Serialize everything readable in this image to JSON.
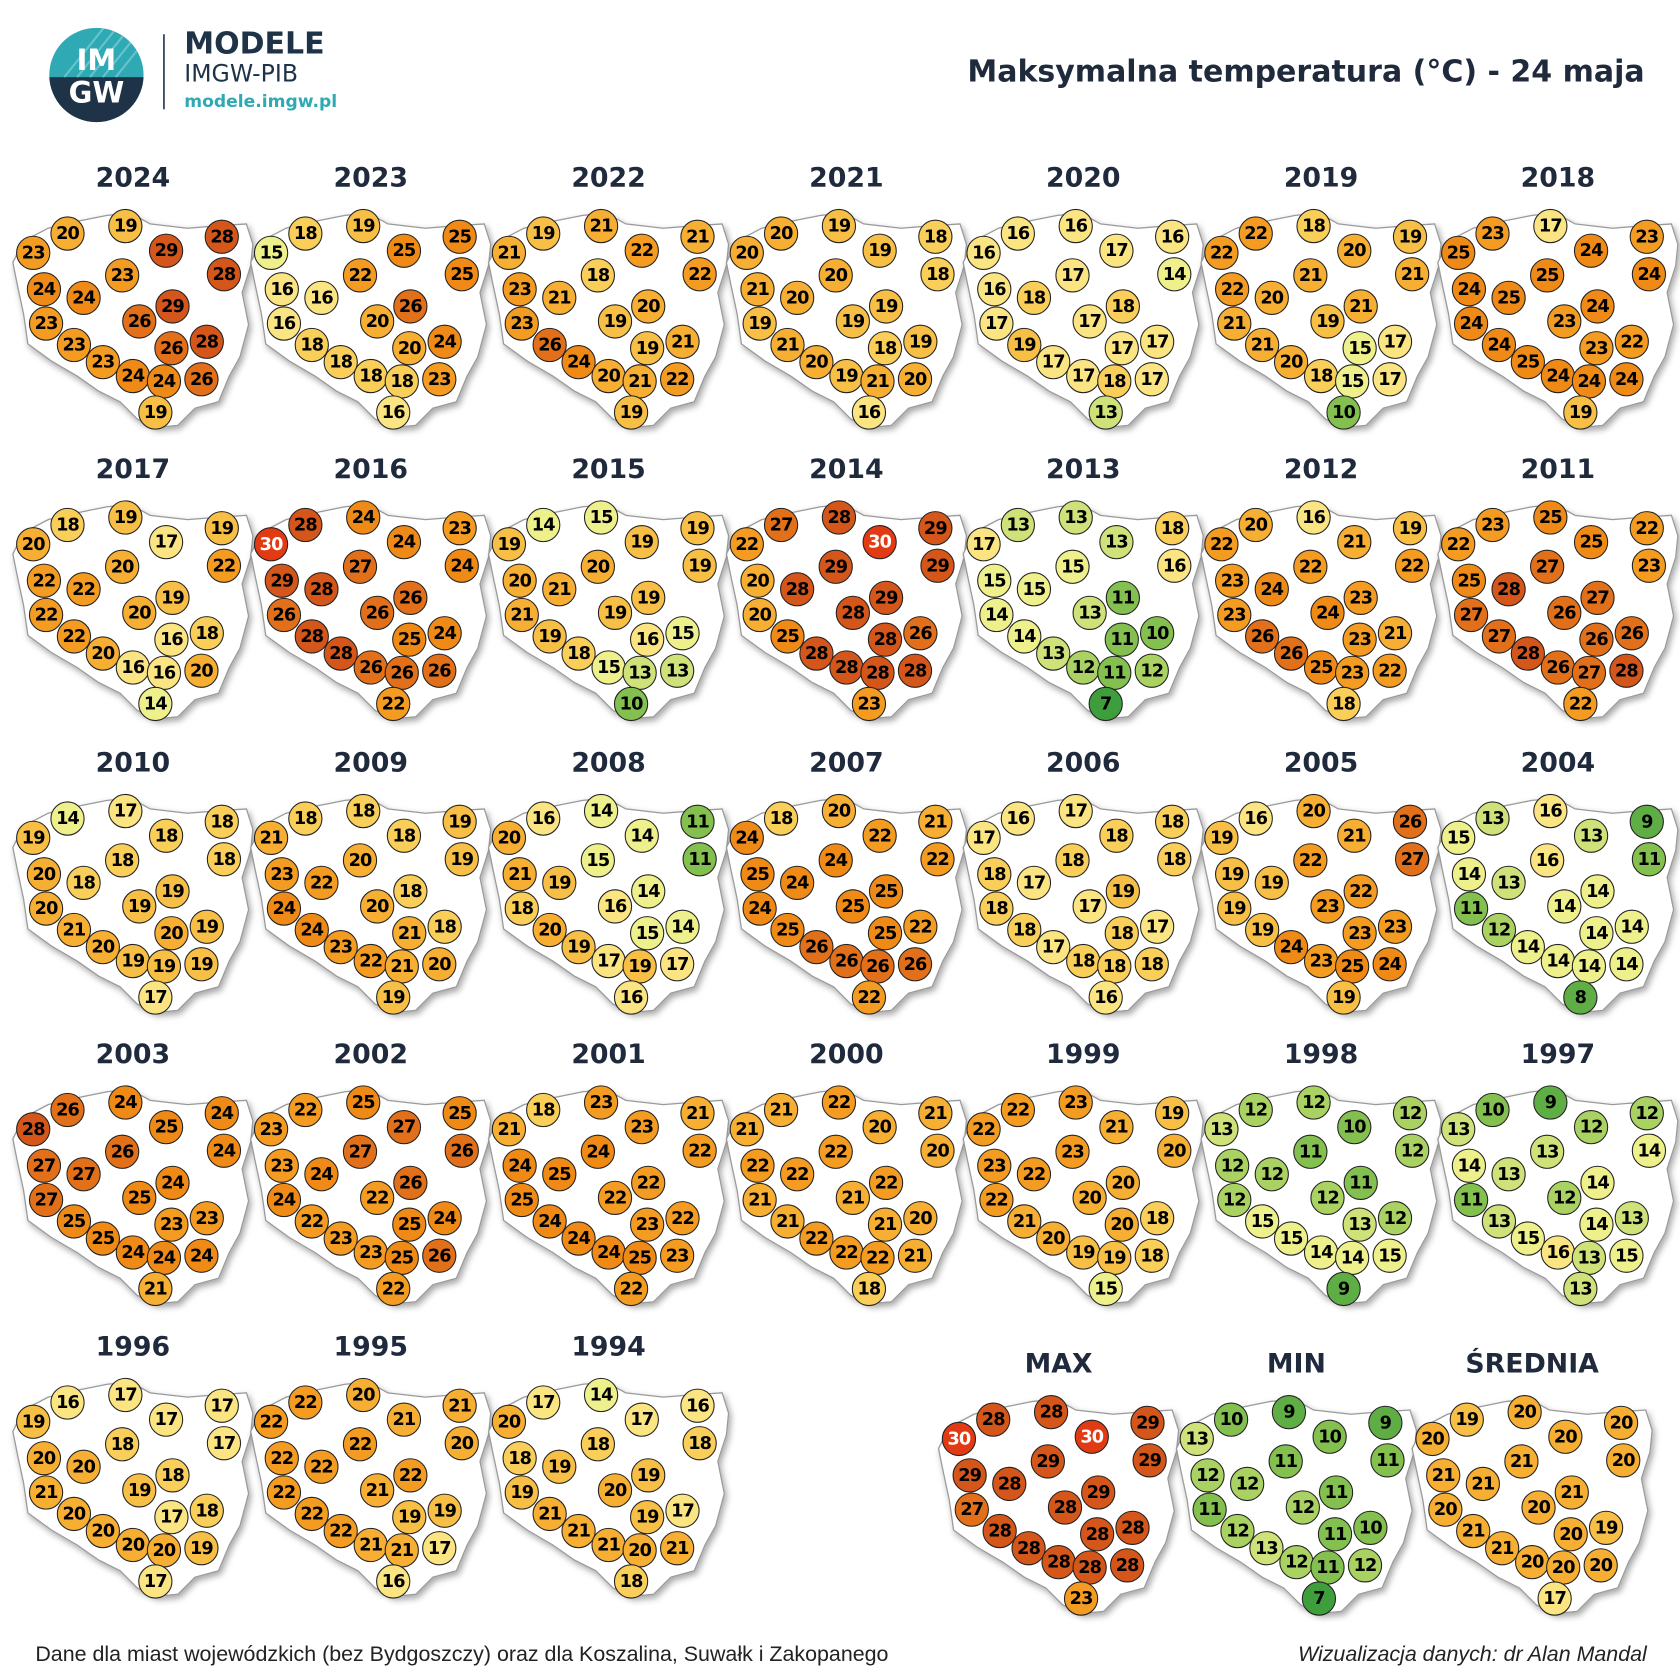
{
  "header": {
    "logo_top": "IM",
    "logo_bottom": "GW",
    "brand": "MODELE",
    "org": "IMGW-PIB",
    "url": "modele.imgw.pl"
  },
  "title": "Maksymalna temperatura (°C) - 24 maja",
  "note": "Dane dla miast wojewódzkich (bez Bydgoszczy) oraz dla Koszalina, Suwałk i Zakopanego",
  "credit": "Wizualizacja danych: dr Alan Mandal",
  "color_scale": [
    {
      "from": -50,
      "color": "#3f9e3c",
      "text": "#000"
    },
    {
      "from": 8,
      "color": "#5fae45",
      "text": "#000"
    },
    {
      "from": 10,
      "color": "#84c04f",
      "text": "#000"
    },
    {
      "from": 12,
      "color": "#aad262",
      "text": "#000"
    },
    {
      "from": 13,
      "color": "#cfe27a",
      "text": "#000"
    },
    {
      "from": 14,
      "color": "#eef08c",
      "text": "#000"
    },
    {
      "from": 16,
      "color": "#fbe583",
      "text": "#000"
    },
    {
      "from": 18,
      "color": "#f9cf5a",
      "text": "#000"
    },
    {
      "from": 19,
      "color": "#f7bf45",
      "text": "#000"
    },
    {
      "from": 20,
      "color": "#f6ae33",
      "text": "#000"
    },
    {
      "from": 22,
      "color": "#f49c22",
      "text": "#000"
    },
    {
      "from": 24,
      "color": "#ef8a16",
      "text": "#000"
    },
    {
      "from": 26,
      "color": "#e2701a",
      "text": "#000"
    },
    {
      "from": 28,
      "color": "#d4561a",
      "text": "#000"
    },
    {
      "from": 30,
      "color": "#e23a12",
      "text": "#fff"
    }
  ],
  "chart_data": [
    {
      "type": "map",
      "title": "2024",
      "values": [
        20,
        19,
        29,
        28,
        23,
        28,
        23,
        24,
        24,
        29,
        23,
        26,
        23,
        26,
        28,
        23,
        24,
        24,
        26,
        19
      ]
    },
    {
      "type": "map",
      "title": "2023",
      "values": [
        18,
        19,
        25,
        25,
        15,
        25,
        22,
        16,
        16,
        26,
        16,
        20,
        18,
        20,
        24,
        18,
        18,
        18,
        23,
        16
      ]
    },
    {
      "type": "map",
      "title": "2022",
      "values": [
        19,
        21,
        22,
        21,
        21,
        22,
        18,
        23,
        21,
        20,
        23,
        19,
        26,
        19,
        21,
        24,
        20,
        21,
        22,
        19
      ]
    },
    {
      "type": "map",
      "title": "2021",
      "values": [
        20,
        19,
        19,
        18,
        20,
        18,
        20,
        21,
        20,
        19,
        19,
        19,
        21,
        18,
        19,
        20,
        19,
        21,
        20,
        16
      ]
    },
    {
      "type": "map",
      "title": "2020",
      "values": [
        16,
        16,
        17,
        16,
        16,
        14,
        17,
        16,
        18,
        18,
        17,
        17,
        19,
        17,
        17,
        17,
        17,
        18,
        17,
        13
      ]
    },
    {
      "type": "map",
      "title": "2019",
      "values": [
        22,
        18,
        20,
        19,
        22,
        21,
        21,
        22,
        20,
        21,
        21,
        19,
        21,
        15,
        17,
        20,
        18,
        15,
        17,
        10
      ]
    },
    {
      "type": "map",
      "title": "2018",
      "values": [
        23,
        17,
        24,
        23,
        25,
        24,
        25,
        24,
        25,
        24,
        24,
        23,
        24,
        23,
        22,
        25,
        24,
        24,
        24,
        19
      ]
    },
    {
      "type": "map",
      "title": "2017",
      "values": [
        18,
        19,
        17,
        19,
        20,
        22,
        20,
        22,
        22,
        19,
        22,
        20,
        22,
        16,
        18,
        20,
        16,
        16,
        20,
        14
      ]
    },
    {
      "type": "map",
      "title": "2016",
      "values": [
        28,
        24,
        24,
        23,
        30,
        24,
        27,
        29,
        28,
        26,
        26,
        26,
        28,
        25,
        24,
        28,
        26,
        26,
        26,
        22
      ]
    },
    {
      "type": "map",
      "title": "2015",
      "values": [
        14,
        15,
        19,
        19,
        19,
        19,
        20,
        20,
        21,
        19,
        21,
        19,
        19,
        16,
        15,
        18,
        15,
        13,
        13,
        10
      ]
    },
    {
      "type": "map",
      "title": "2014",
      "values": [
        27,
        28,
        30,
        29,
        22,
        29,
        29,
        20,
        28,
        29,
        20,
        28,
        25,
        28,
        26,
        28,
        28,
        28,
        28,
        23
      ]
    },
    {
      "type": "map",
      "title": "2013",
      "values": [
        13,
        13,
        13,
        18,
        17,
        16,
        15,
        15,
        15,
        11,
        14,
        13,
        14,
        11,
        10,
        13,
        12,
        11,
        12,
        7
      ]
    },
    {
      "type": "map",
      "title": "2012",
      "values": [
        20,
        16,
        21,
        19,
        22,
        22,
        22,
        23,
        24,
        23,
        23,
        24,
        26,
        23,
        21,
        26,
        25,
        23,
        22,
        18
      ]
    },
    {
      "type": "map",
      "title": "2011",
      "values": [
        23,
        25,
        25,
        22,
        22,
        23,
        27,
        25,
        28,
        27,
        27,
        26,
        27,
        26,
        26,
        28,
        26,
        27,
        28,
        22
      ]
    },
    {
      "type": "map",
      "title": "2010",
      "values": [
        14,
        17,
        18,
        18,
        19,
        18,
        18,
        20,
        18,
        19,
        20,
        19,
        21,
        20,
        19,
        20,
        19,
        19,
        19,
        17
      ]
    },
    {
      "type": "map",
      "title": "2009",
      "values": [
        18,
        18,
        18,
        19,
        21,
        19,
        20,
        23,
        22,
        18,
        24,
        20,
        24,
        21,
        18,
        23,
        22,
        21,
        20,
        19
      ]
    },
    {
      "type": "map",
      "title": "2008",
      "values": [
        16,
        14,
        14,
        11,
        20,
        11,
        15,
        21,
        19,
        14,
        18,
        16,
        20,
        15,
        14,
        19,
        17,
        19,
        17,
        16
      ]
    },
    {
      "type": "map",
      "title": "2007",
      "values": [
        18,
        20,
        22,
        21,
        24,
        22,
        24,
        25,
        24,
        25,
        24,
        25,
        25,
        25,
        22,
        26,
        26,
        26,
        26,
        22
      ]
    },
    {
      "type": "map",
      "title": "2006",
      "values": [
        16,
        17,
        18,
        18,
        17,
        18,
        18,
        18,
        17,
        19,
        18,
        17,
        18,
        18,
        17,
        17,
        18,
        18,
        18,
        16
      ]
    },
    {
      "type": "map",
      "title": "2005",
      "values": [
        16,
        20,
        21,
        26,
        19,
        27,
        22,
        19,
        19,
        22,
        19,
        23,
        19,
        23,
        23,
        24,
        23,
        25,
        24,
        19
      ]
    },
    {
      "type": "map",
      "title": "2004",
      "values": [
        13,
        16,
        13,
        9,
        15,
        11,
        16,
        14,
        13,
        14,
        11,
        14,
        12,
        14,
        14,
        14,
        14,
        14,
        14,
        8
      ]
    },
    {
      "type": "map",
      "title": "2003",
      "values": [
        26,
        24,
        25,
        24,
        28,
        24,
        26,
        27,
        27,
        24,
        27,
        25,
        25,
        23,
        23,
        25,
        24,
        24,
        24,
        21
      ]
    },
    {
      "type": "map",
      "title": "2002",
      "values": [
        22,
        25,
        27,
        25,
        23,
        26,
        27,
        23,
        24,
        26,
        24,
        22,
        22,
        25,
        24,
        23,
        23,
        25,
        26,
        22
      ]
    },
    {
      "type": "map",
      "title": "2001",
      "values": [
        18,
        23,
        23,
        21,
        21,
        22,
        24,
        24,
        25,
        22,
        25,
        22,
        24,
        23,
        22,
        24,
        24,
        25,
        23,
        22
      ]
    },
    {
      "type": "map",
      "title": "2000",
      "values": [
        21,
        22,
        20,
        21,
        21,
        20,
        22,
        22,
        22,
        22,
        21,
        21,
        21,
        21,
        20,
        22,
        22,
        22,
        21,
        18
      ]
    },
    {
      "type": "map",
      "title": "1999",
      "values": [
        22,
        23,
        21,
        19,
        22,
        20,
        23,
        23,
        22,
        20,
        22,
        20,
        21,
        20,
        18,
        20,
        19,
        19,
        18,
        15
      ]
    },
    {
      "type": "map",
      "title": "1998",
      "values": [
        12,
        12,
        10,
        12,
        13,
        12,
        11,
        12,
        12,
        11,
        12,
        12,
        15,
        13,
        12,
        15,
        14,
        14,
        15,
        9
      ]
    },
    {
      "type": "map",
      "title": "1997",
      "values": [
        10,
        9,
        12,
        12,
        13,
        14,
        13,
        14,
        13,
        14,
        11,
        12,
        13,
        14,
        13,
        15,
        16,
        13,
        15,
        13
      ]
    },
    {
      "type": "map",
      "title": "1996",
      "values": [
        16,
        17,
        17,
        17,
        19,
        17,
        18,
        20,
        20,
        18,
        21,
        19,
        20,
        17,
        18,
        20,
        20,
        20,
        19,
        17
      ]
    },
    {
      "type": "map",
      "title": "1995",
      "values": [
        22,
        20,
        21,
        21,
        22,
        20,
        22,
        22,
        22,
        22,
        22,
        21,
        22,
        19,
        19,
        22,
        21,
        21,
        17,
        16
      ]
    },
    {
      "type": "map",
      "title": "1994",
      "values": [
        17,
        14,
        17,
        16,
        20,
        18,
        18,
        18,
        19,
        19,
        19,
        20,
        21,
        19,
        17,
        21,
        21,
        20,
        21,
        18
      ]
    },
    {
      "type": "map",
      "title": "MAX",
      "values": [
        28,
        28,
        30,
        29,
        30,
        29,
        29,
        29,
        28,
        29,
        27,
        28,
        28,
        28,
        28,
        28,
        28,
        28,
        28,
        23
      ]
    },
    {
      "type": "map",
      "title": "MIN",
      "values": [
        10,
        9,
        10,
        9,
        13,
        11,
        11,
        12,
        12,
        11,
        11,
        12,
        12,
        11,
        10,
        13,
        12,
        11,
        12,
        7
      ]
    },
    {
      "type": "map",
      "title": "ŚREDNIA",
      "values": [
        19,
        20,
        20,
        20,
        20,
        20,
        21,
        21,
        21,
        21,
        20,
        20,
        21,
        20,
        19,
        21,
        20,
        20,
        20,
        17
      ]
    }
  ]
}
